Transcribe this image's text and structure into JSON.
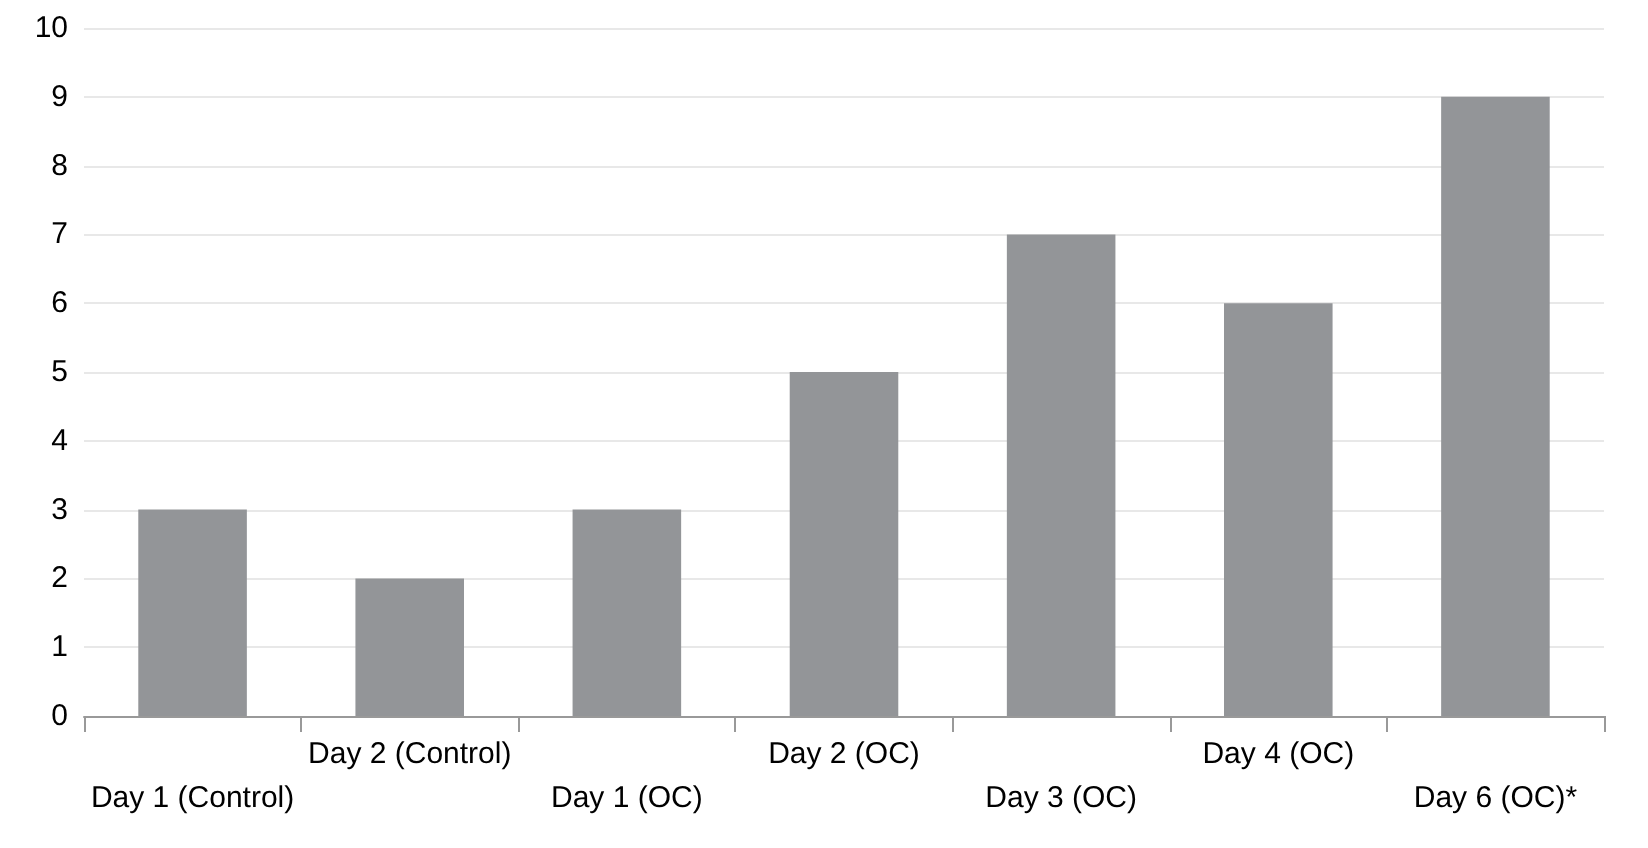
{
  "chart_data": {
    "type": "bar",
    "categories": [
      "Day 1 (Control)",
      "Day 2 (Control)",
      "Day 1 (OC)",
      "Day 2 (OC)",
      "Day 3 (OC)",
      "Day 4 (OC)",
      "Day 6 (OC)*"
    ],
    "values": [
      3,
      2,
      3,
      5,
      7,
      6,
      9
    ],
    "color": "#939598",
    "ylim": [
      0,
      10
    ],
    "yticks": [
      0,
      1,
      2,
      3,
      4,
      5,
      6,
      7,
      8,
      9,
      10
    ],
    "grid": "y"
  }
}
